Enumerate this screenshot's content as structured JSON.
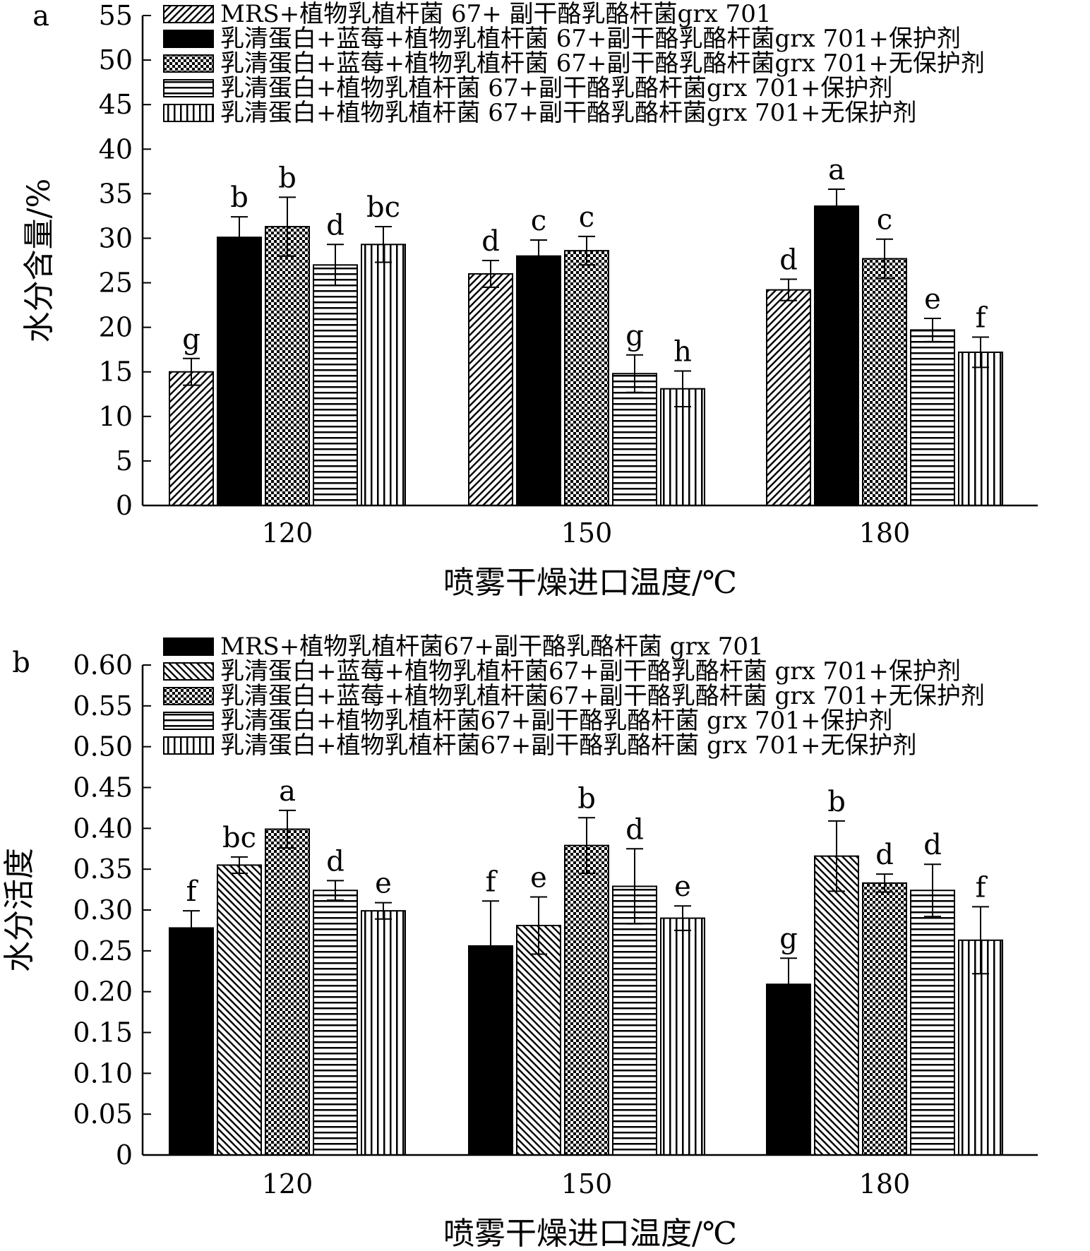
{
  "chart_data": [
    {
      "type": "bar",
      "panel_label": "a",
      "categories": [
        "120",
        "150",
        "180"
      ],
      "xlabel": "喷雾干燥进口温度/℃",
      "ylabel": "水分含量/%",
      "ylim": [
        0,
        55
      ],
      "yticks": [
        "0",
        "5",
        "10",
        "15",
        "20",
        "25",
        "30",
        "35",
        "40",
        "45",
        "50",
        "55"
      ],
      "legend_position": "top",
      "series": [
        {
          "name": "MRS+植物乳植杆菌 67+ 副干酪乳酪杆菌grx 701",
          "pattern": "diag",
          "values": [
            15.0,
            26.0,
            24.2
          ],
          "errors": [
            1.5,
            1.5,
            1.2
          ],
          "labels": [
            "g",
            "d",
            "d"
          ]
        },
        {
          "name": "乳清蛋白+蓝莓+植物乳植杆菌 67+副干酪乳酪杆菌grx 701+保护剂",
          "pattern": "solid",
          "values": [
            30.1,
            28.0,
            33.6
          ],
          "errors": [
            2.3,
            1.8,
            1.9
          ],
          "labels": [
            "b",
            "c",
            "a"
          ]
        },
        {
          "name": "乳清蛋白+蓝莓+植物乳植杆菌 67+副干酪乳酪杆菌grx 701+无保护剂",
          "pattern": "check",
          "values": [
            31.3,
            28.6,
            27.7
          ],
          "errors": [
            3.3,
            1.6,
            2.2
          ],
          "labels": [
            "b",
            "c",
            "c"
          ]
        },
        {
          "name": "乳清蛋白+植物乳植杆菌 67+副干酪乳酪杆菌grx 701+保护剂",
          "pattern": "hlines",
          "values": [
            27.0,
            14.8,
            19.7
          ],
          "errors": [
            2.3,
            2.1,
            1.3
          ],
          "labels": [
            "d",
            "g",
            "e"
          ]
        },
        {
          "name": "乳清蛋白+植物乳植杆菌 67+副干酪乳酪杆菌grx 701+无保护剂",
          "pattern": "vlines",
          "values": [
            29.3,
            13.1,
            17.2
          ],
          "errors": [
            2.0,
            2.0,
            1.7
          ],
          "labels": [
            "bc",
            "h",
            "f"
          ]
        }
      ]
    },
    {
      "type": "bar",
      "panel_label": "b",
      "categories": [
        "120",
        "150",
        "180"
      ],
      "xlabel": "喷雾干燥进口温度/℃",
      "ylabel": "水分活度",
      "ylim": [
        0,
        0.6
      ],
      "yticks": [
        "0",
        "0.05",
        "0.10",
        "0.15",
        "0.20",
        "0.25",
        "0.30",
        "0.35",
        "0.40",
        "0.45",
        "0.50",
        "0.55",
        "0.60"
      ],
      "legend_position": "top",
      "series": [
        {
          "name": "MRS+植物乳植杆菌67+副干酪乳酪杆菌 grx 701",
          "pattern": "solid",
          "values": [
            0.278,
            0.256,
            0.209
          ],
          "errors": [
            0.021,
            0.055,
            0.032
          ],
          "labels": [
            "f",
            "f",
            "g"
          ]
        },
        {
          "name": "乳清蛋白+蓝莓+植物乳植杆菌67+副干酪乳酪杆菌 grx 701+保护剂",
          "pattern": "diag2",
          "values": [
            0.355,
            0.281,
            0.366
          ],
          "errors": [
            0.01,
            0.035,
            0.043
          ],
          "labels": [
            "bc",
            "e",
            "b"
          ]
        },
        {
          "name": "乳清蛋白+蓝莓+植物乳植杆菌67+副干酪乳酪杆菌 grx 701+无保护剂",
          "pattern": "check",
          "values": [
            0.399,
            0.379,
            0.333
          ],
          "errors": [
            0.023,
            0.034,
            0.011
          ],
          "labels": [
            "a",
            "b",
            "d"
          ]
        },
        {
          "name": "乳清蛋白+植物乳植杆菌67+副干酪乳酪杆菌 grx 701+保护剂",
          "pattern": "hlines",
          "values": [
            0.324,
            0.329,
            0.324
          ],
          "errors": [
            0.012,
            0.046,
            0.032
          ],
          "labels": [
            "d",
            "d",
            "d"
          ]
        },
        {
          "name": "乳清蛋白+植物乳植杆菌67+副干酪乳酪杆菌 grx 701+无保护剂",
          "pattern": "vlines",
          "values": [
            0.299,
            0.29,
            0.263
          ],
          "errors": [
            0.01,
            0.015,
            0.041
          ],
          "labels": [
            "e",
            "e",
            "f"
          ]
        }
      ]
    }
  ]
}
